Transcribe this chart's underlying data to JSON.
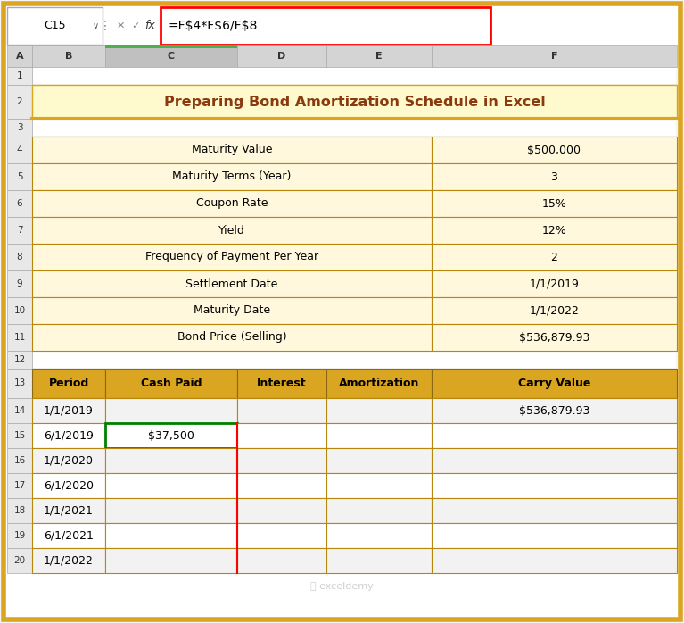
{
  "title": "Preparing Bond Amortization Schedule in Excel",
  "formula_bar_text": "=F$4*F$6/F$8",
  "cell_ref": "C15",
  "top_table": {
    "labels": [
      "Maturity Value",
      "Maturity Terms (Year)",
      "Coupon Rate",
      "Yield",
      "Frequency of Payment Per Year",
      "Settlement Date",
      "Maturity Date",
      "Bond Price (Selling)"
    ],
    "values": [
      "$500,000",
      "3",
      "15%",
      "12%",
      "2",
      "1/1/2019",
      "1/1/2022",
      "$536,879.93"
    ]
  },
  "bottom_table": {
    "headers": [
      "Period",
      "Cash Paid",
      "Interest",
      "Amortization",
      "Carry Value"
    ],
    "rows": [
      [
        "1/1/2019",
        "",
        "",
        "",
        "$536,879.93"
      ],
      [
        "6/1/2019",
        "$37,500",
        "",
        "",
        ""
      ],
      [
        "1/1/2020",
        "",
        "",
        "",
        ""
      ],
      [
        "6/1/2020",
        "",
        "",
        "",
        ""
      ],
      [
        "1/1/2021",
        "",
        "",
        "",
        ""
      ],
      [
        "6/1/2021",
        "",
        "",
        "",
        ""
      ],
      [
        "1/1/2022",
        "",
        "",
        "",
        ""
      ]
    ]
  },
  "colors": {
    "page_bg": "#F5F5F5",
    "outer_border": "#DAA520",
    "inner_bg": "#FFFFFF",
    "title_bg": "#FFFACD",
    "title_text": "#8B3A0F",
    "title_underline": "#DAA520",
    "top_table_cell_bg": "#FFF8DC",
    "top_table_border": "#B8860B",
    "bottom_header_bg": "#DAA520",
    "bottom_header_text": "#000000",
    "bottom_data_bg_alt": "#F2F2F2",
    "bottom_data_bg": "#FFFFFF",
    "bottom_table_border": "#B8860B",
    "formula_border": "#FF0000",
    "green_border": "#008000",
    "red_line": "#FF0000",
    "row_num_bg": "#E8E8E8",
    "col_hdr_bg": "#D4D4D4",
    "col_c_bg": "#C0C0C0",
    "grid_line": "#CCCCCC",
    "watermark": "#BBBBBB"
  },
  "figsize": [
    7.67,
    6.98
  ],
  "dpi": 100
}
